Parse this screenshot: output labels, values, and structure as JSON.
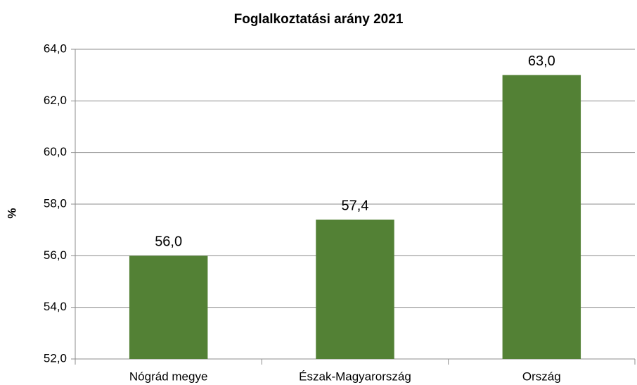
{
  "chart_data": {
    "type": "bar",
    "title": "Foglalkoztatási arány  2021",
    "y_label": "%",
    "categories": [
      "Nógrád megye",
      "Észak-Magyarország",
      "Ország"
    ],
    "values": [
      56.0,
      57.4,
      63.0
    ],
    "value_labels": [
      "56,0",
      "57,4",
      "63,0"
    ],
    "color": "#538135",
    "ylim": [
      52,
      64
    ],
    "yticks": [
      {
        "value": 52,
        "label": "52,0"
      },
      {
        "value": 54,
        "label": "54,0"
      },
      {
        "value": 56,
        "label": "56,0"
      },
      {
        "value": 58,
        "label": "58,0"
      },
      {
        "value": 60,
        "label": "60,0"
      },
      {
        "value": 62,
        "label": "62,0"
      },
      {
        "value": 64,
        "label": "64,0"
      }
    ],
    "grid": true
  }
}
